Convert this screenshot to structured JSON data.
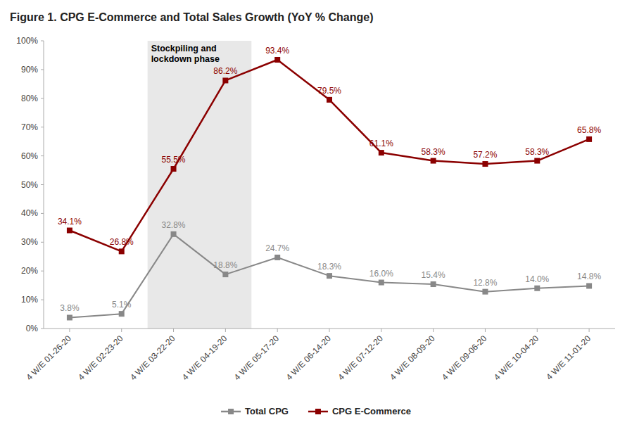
{
  "chart_data": {
    "type": "line",
    "title": "Figure 1. CPG E-Commerce and Total Sales Growth (YoY % Change)",
    "categories": [
      "4 W/E 01-26-20",
      "4 W/E 02-23-20",
      "4 W/E 03-22-20",
      "4 W/E 04-19-20",
      "4 W/E 05-17-20",
      "4 W/E 06-14-20",
      "4 W/E 07-12-20",
      "4 W/E 08-09-20",
      "4 W/E 09-06-20",
      "4 W/E 10-04-20",
      "4 W/E 11-01-20"
    ],
    "series": [
      {
        "name": "Total CPG",
        "color": "#888888",
        "marker": "square",
        "line_style": "solid",
        "values": [
          3.8,
          5.1,
          32.8,
          18.8,
          24.7,
          18.3,
          16.0,
          15.4,
          12.8,
          14.0,
          14.8
        ],
        "value_labels": [
          "3.8%",
          "5.1%",
          "32.8%",
          "18.8%",
          "24.7%",
          "18.3%",
          "16.0%",
          "15.4%",
          "12.8%",
          "14.0%",
          "14.8%"
        ]
      },
      {
        "name": "CPG E-Commerce",
        "color": "#8B0000",
        "marker": "square",
        "line_style": "solid",
        "values": [
          34.1,
          26.8,
          55.5,
          86.2,
          93.4,
          79.5,
          61.1,
          58.3,
          57.2,
          58.3,
          65.8
        ],
        "value_labels": [
          "34.1%",
          "26.8%",
          "55.5%",
          "86.2%",
          "93.4%",
          "79.5%",
          "61.1%",
          "58.3%",
          "57.2%",
          "58.3%",
          "65.8%"
        ]
      }
    ],
    "ylim": [
      0,
      100
    ],
    "yticks": [
      {
        "value": 0,
        "label": "0%"
      },
      {
        "value": 10,
        "label": "10%"
      },
      {
        "value": 20,
        "label": "20%"
      },
      {
        "value": 30,
        "label": "30%"
      },
      {
        "value": 40,
        "label": "40%"
      },
      {
        "value": 50,
        "label": "50%"
      },
      {
        "value": 60,
        "label": "60%"
      },
      {
        "value": 70,
        "label": "70%"
      },
      {
        "value": 80,
        "label": "80%"
      },
      {
        "value": 90,
        "label": "90%"
      },
      {
        "value": 100,
        "label": "100%"
      }
    ],
    "annotations": [
      {
        "text": "Stockpiling and\nlockdown phase",
        "categories": [
          "4 W/E 03-22-20",
          "4 W/E 04-19-20"
        ],
        "color": "#E8E8E8"
      }
    ],
    "grid": false,
    "legend": "bottom",
    "data_labels": true
  }
}
